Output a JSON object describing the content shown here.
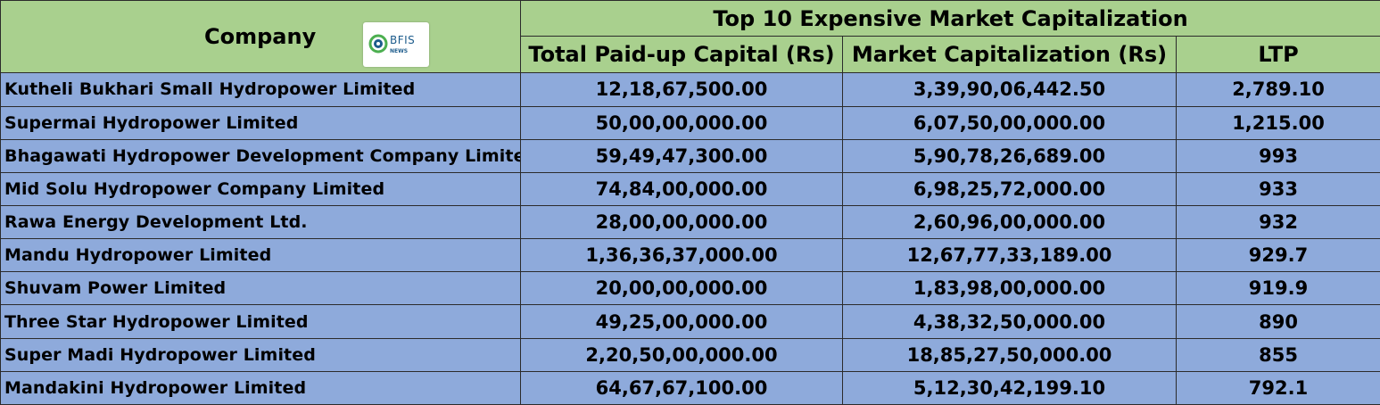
{
  "table": {
    "title": "Top 10 Expensive Market Capitalization",
    "headers": {
      "company": "Company",
      "paid_up": "Total Paid-up Capital (Rs)",
      "market_cap": "Market Capitalization (Rs)",
      "ltp": "LTP"
    },
    "rows": [
      {
        "company": "Kutheli Bukhari Small Hydropower Limited",
        "paid_up": "12,18,67,500.00",
        "market_cap": "3,39,90,06,442.50",
        "ltp": "2,789.10"
      },
      {
        "company": "Supermai Hydropower Limited",
        "paid_up": "50,00,00,000.00",
        "market_cap": "6,07,50,00,000.00",
        "ltp": "1,215.00"
      },
      {
        "company": "Bhagawati Hydropower Development Company Limited",
        "paid_up": "59,49,47,300.00",
        "market_cap": "5,90,78,26,689.00",
        "ltp": "993"
      },
      {
        "company": "Mid Solu Hydropower Company Limited",
        "paid_up": "74,84,00,000.00",
        "market_cap": "6,98,25,72,000.00",
        "ltp": "933"
      },
      {
        "company": "Rawa Energy Development Ltd.",
        "paid_up": "28,00,00,000.00",
        "market_cap": "2,60,96,00,000.00",
        "ltp": "932"
      },
      {
        "company": "Mandu Hydropower Limited",
        "paid_up": "1,36,36,37,000.00",
        "market_cap": "12,67,77,33,189.00",
        "ltp": "929.7"
      },
      {
        "company": "Shuvam Power Limited",
        "paid_up": "20,00,00,000.00",
        "market_cap": "1,83,98,00,000.00",
        "ltp": "919.9"
      },
      {
        "company": "Three Star Hydropower Limited",
        "paid_up": "49,25,00,000.00",
        "market_cap": "4,38,32,50,000.00",
        "ltp": "890"
      },
      {
        "company": "Super Madi Hydropower Limited",
        "paid_up": "2,20,50,00,000.00",
        "market_cap": "18,85,27,50,000.00",
        "ltp": "855"
      },
      {
        "company": "Mandakini Hydropower Limited",
        "paid_up": "64,67,67,100.00",
        "market_cap": "5,12,30,42,199.10",
        "ltp": "792.1"
      }
    ]
  },
  "logo": {
    "text": "BFIS",
    "subtext": "NEWS"
  },
  "colors": {
    "header_bg": "#a9d08e",
    "row_bg": "#8eaadb",
    "logo_blue": "#1d5c8c",
    "logo_green": "#4caf50"
  }
}
